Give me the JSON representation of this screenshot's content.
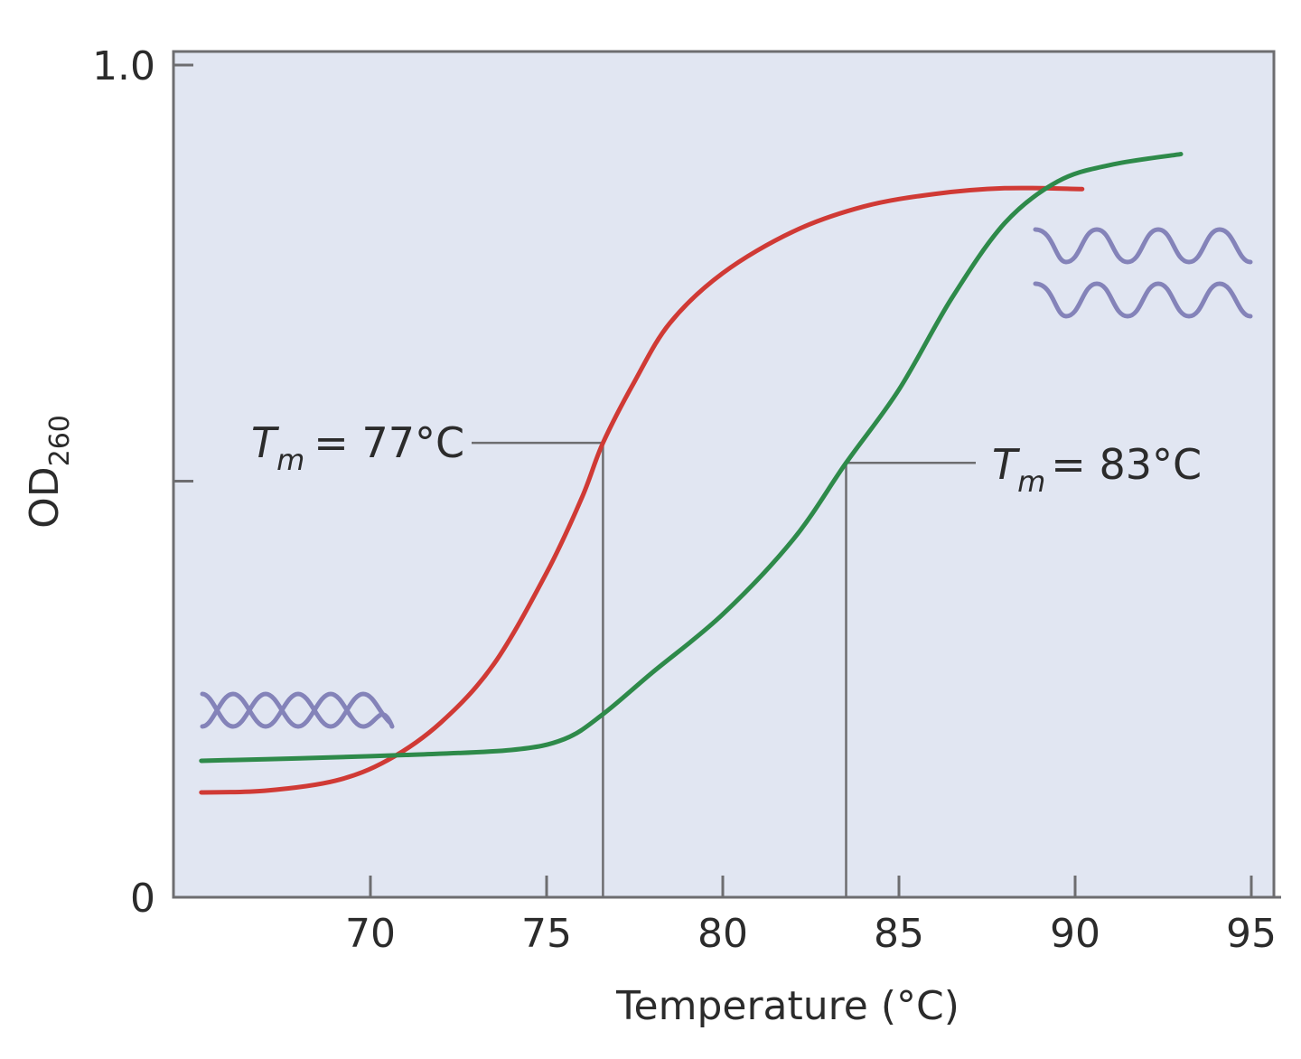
{
  "chart_data": {
    "type": "line",
    "title": "",
    "xlabel": "Temperature (°C)",
    "ylabel": "OD260",
    "ylabel_main": "OD",
    "ylabel_subscript": "260",
    "xlim": [
      64.5,
      95.7
    ],
    "ylim": [
      0,
      1.0
    ],
    "x_ticks": [
      70,
      75,
      80,
      85,
      90,
      95
    ],
    "x_tick_labels": [
      "70",
      "75",
      "80",
      "85",
      "90",
      "95"
    ],
    "y_ticks": [
      0,
      0.5,
      1.0
    ],
    "y_tick_labels": [
      "0",
      "",
      "1.0"
    ],
    "grid": false,
    "legend": null,
    "plot_background": "#e1e6f2",
    "series": [
      {
        "name": "red curve (Tm = 77°C)",
        "color": "#d03a35",
        "x": [
          65.2,
          67,
          69,
          70.5,
          72,
          73.5,
          75,
          76,
          76.6,
          77.5,
          78.5,
          80,
          82,
          84,
          86,
          88,
          90.2
        ],
        "y": [
          0.126,
          0.128,
          0.14,
          0.165,
          0.21,
          0.28,
          0.39,
          0.48,
          0.546,
          0.62,
          0.69,
          0.75,
          0.8,
          0.83,
          0.845,
          0.852,
          0.851
        ]
      },
      {
        "name": "green curve (Tm = 83°C)",
        "color": "#2e8a4a",
        "x": [
          65.2,
          68,
          71,
          74,
          75.5,
          76.6,
          78,
          80,
          82,
          83.5,
          85,
          86.5,
          88,
          89.5,
          91,
          93
        ],
        "y": [
          0.164,
          0.167,
          0.171,
          0.177,
          0.19,
          0.22,
          0.27,
          0.34,
          0.43,
          0.522,
          0.61,
          0.72,
          0.81,
          0.86,
          0.88,
          0.893
        ]
      }
    ],
    "annotations": [
      {
        "label": "Tm = 77°C",
        "symbol": "T",
        "subscript": "m",
        "value_text": "= 77°C",
        "x": 76.6,
        "y": 0.546,
        "series": "red"
      },
      {
        "label": "Tm = 83°C",
        "symbol": "T",
        "subscript": "m",
        "value_text": "= 83°C",
        "x": 83.5,
        "y": 0.522,
        "series": "green"
      }
    ],
    "icons": [
      {
        "name": "double-helix-icon",
        "position": "lower-left",
        "meaning": "double-stranded DNA"
      },
      {
        "name": "single-strands-icon",
        "position": "upper-right",
        "meaning": "separated single strands"
      }
    ]
  }
}
